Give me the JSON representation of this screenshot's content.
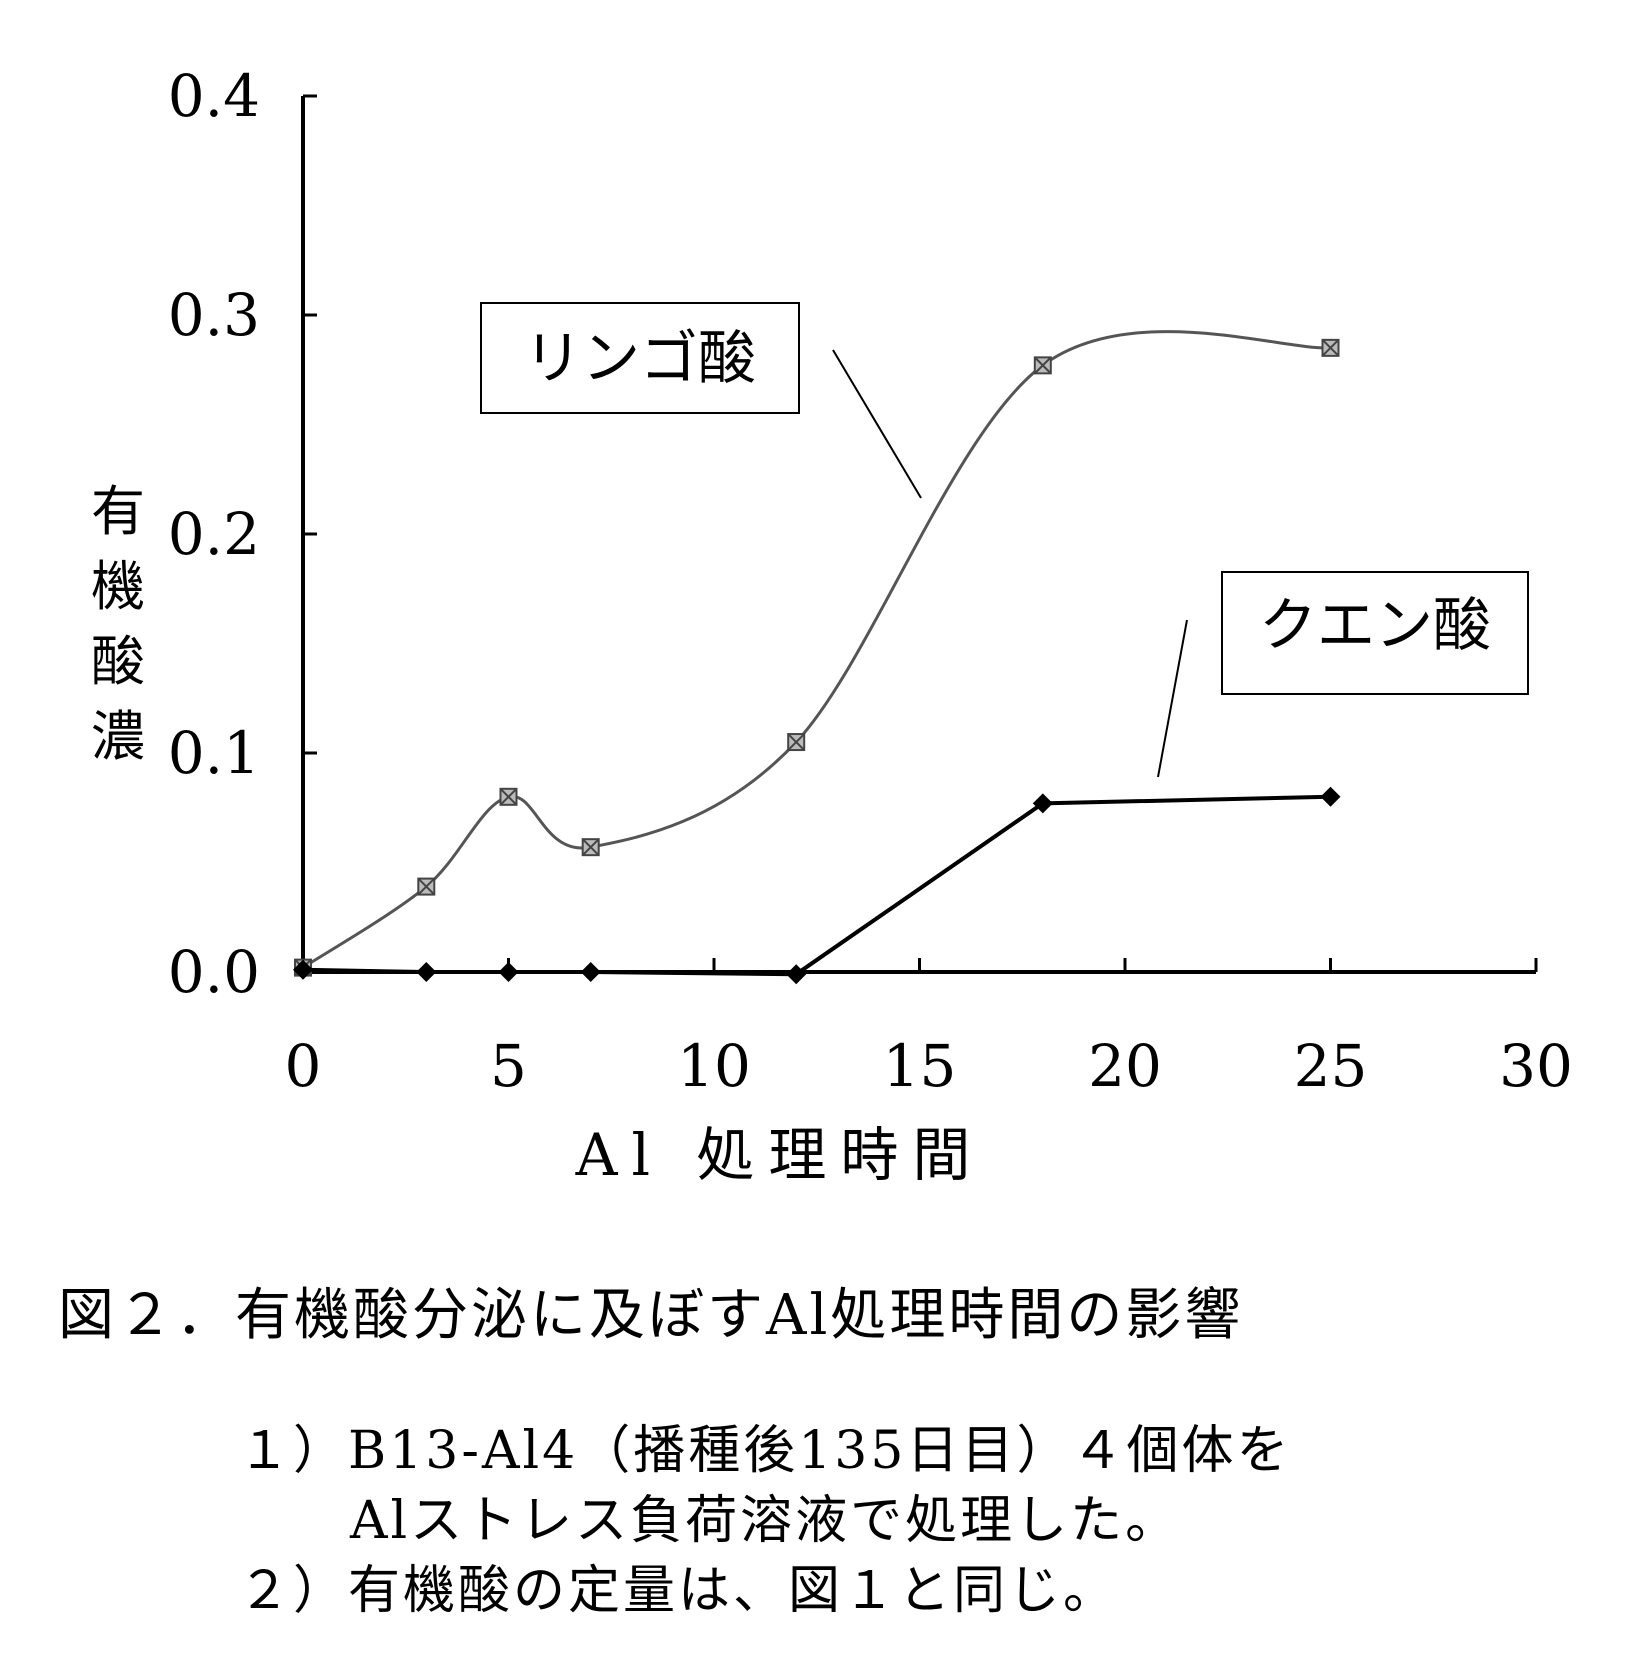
{
  "chart_data": {
    "type": "line",
    "title": "",
    "xlabel": "Al 処理時間",
    "ylabel": "有機酸濃",
    "xlim": [
      0,
      30
    ],
    "ylim": [
      0,
      0.4
    ],
    "x_ticks": [
      0,
      5,
      10,
      15,
      20,
      25,
      30
    ],
    "x_tick_labels": [
      "0",
      "5",
      "10",
      "15",
      "20",
      "25",
      "30"
    ],
    "y_ticks": [
      0,
      0.1,
      0.2,
      0.3,
      0.4
    ],
    "y_tick_labels": [
      "0.0",
      "0.1",
      "0.2",
      "0.3",
      "0.4"
    ],
    "grid": false,
    "series": [
      {
        "name": "リンゴ酸",
        "x": [
          0,
          3,
          5,
          7,
          12,
          18,
          25
        ],
        "values": [
          0.002,
          0.039,
          0.08,
          0.057,
          0.105,
          0.277,
          0.285
        ],
        "style": "smooth",
        "marker": "square-hatched",
        "color": "#555555"
      },
      {
        "name": "クエン酸",
        "x": [
          0,
          3,
          5,
          7,
          12,
          18,
          25
        ],
        "values": [
          0.001,
          0.0,
          0.0,
          0.0,
          -0.001,
          0.077,
          0.08
        ],
        "style": "straight",
        "marker": "diamond",
        "color": "#000000"
      }
    ],
    "annotations": [
      {
        "text": "リンゴ酸",
        "series": 0
      },
      {
        "text": "クエン酸",
        "series": 1
      }
    ]
  },
  "caption": {
    "title": "図２．有機酸分泌に及ぼすAl処理時間の影響",
    "note1_line1": "１）B13-Al4（播種後135日目）４個体を",
    "note1_line2": "Alストレス負荷溶液で処理した。",
    "note2": "２）有機酸の定量は、図１と同じ。"
  }
}
